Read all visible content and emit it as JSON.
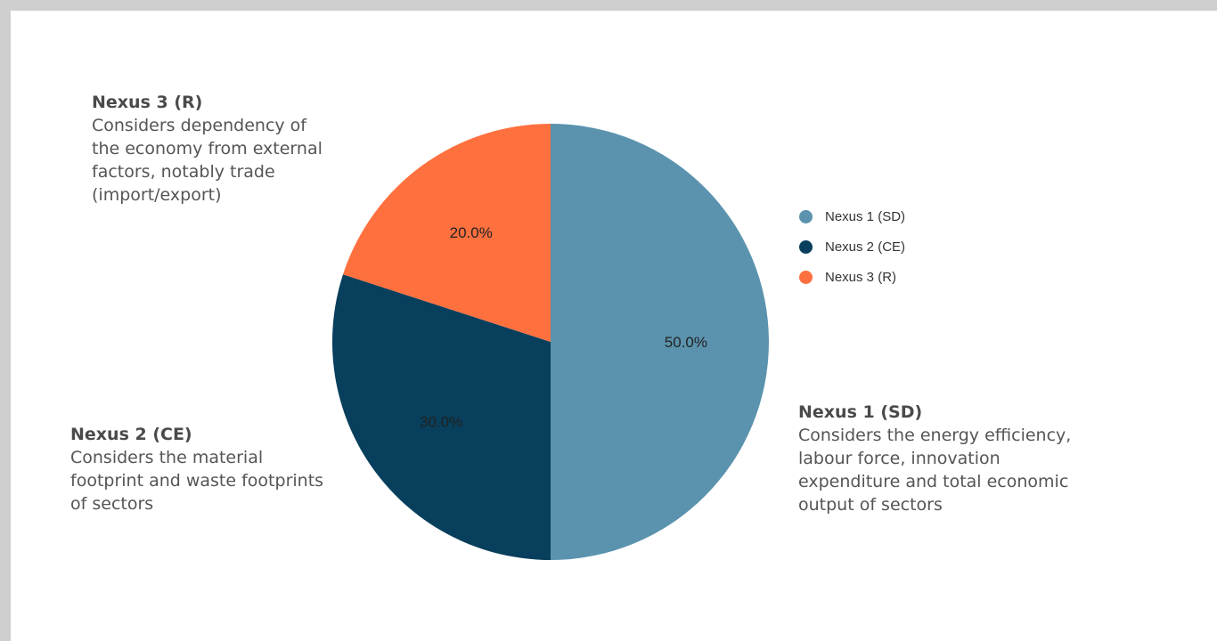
{
  "chart_data": {
    "type": "pie",
    "categories": [
      "Nexus 1 (SD)",
      "Nexus 2 (CE)",
      "Nexus 3 (R)"
    ],
    "values": [
      50.0,
      30.0,
      20.0
    ],
    "slice_labels": [
      "50.0%",
      "30.0%",
      "20.0%"
    ],
    "colors": [
      "#5b93ae",
      "#083f5c",
      "#ff703f"
    ],
    "legend_position": "right",
    "start_angle": "12 o'clock, clockwise"
  },
  "annotations": {
    "nexus1": {
      "title": "Nexus 1 (SD)",
      "body": "Considers the energy efficiency,\nlabour force, innovation\nexpenditure and total economic\noutput of sectors"
    },
    "nexus2": {
      "title": "Nexus 2 (CE)",
      "body": "Considers the material\nfootprint and waste footprints\nof sectors"
    },
    "nexus3": {
      "title": "Nexus 3 (R)",
      "body": "Considers dependency of\nthe economy from external\nfactors, notably trade\n(import/export)"
    }
  }
}
